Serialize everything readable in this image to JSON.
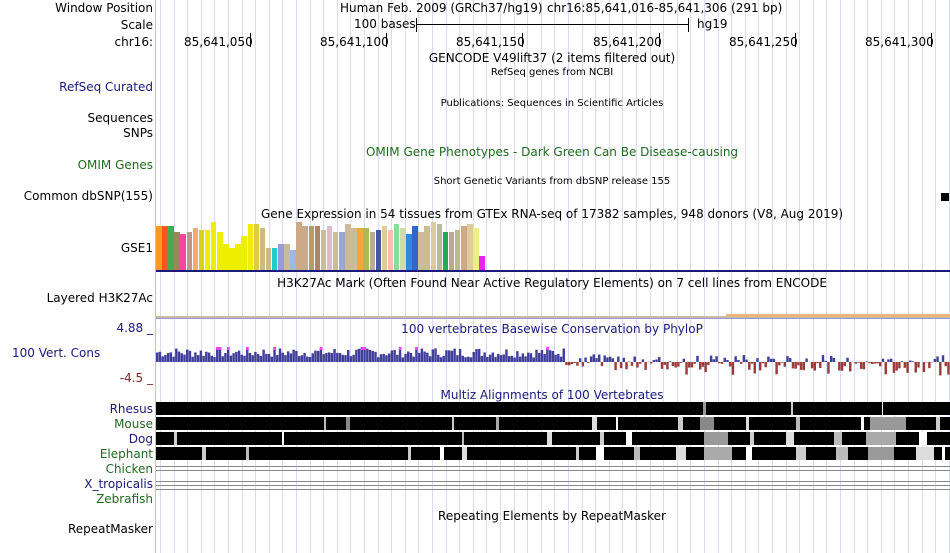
{
  "header": {
    "window_position_label": "Window Position",
    "scale_label": "Scale",
    "chrom_label": "chr16:",
    "assembly_text": "Human Feb. 2009 (GRCh37/hg19)",
    "position_text": "chr16:85,641,016-85,641,306 (291 bp)",
    "scale_text": "100 bases",
    "scale_db": "hg19",
    "ruler_ticks": [
      "85,641,050",
      "85,641,100",
      "85,641,150",
      "85,641,200",
      "85,641,250",
      "85,641,300"
    ]
  },
  "tracks": {
    "gencode": {
      "title": "GENCODE V49lift37 (2 items filtered out)"
    },
    "refseq": {
      "label": "RefSeq Curated",
      "title": "RefSeq genes from NCBI"
    },
    "sequences": {
      "label": "Sequences",
      "title": "Publications: Sequences in Scientific Articles"
    },
    "snps": {
      "label": "SNPs"
    },
    "omim": {
      "label": "OMIM Genes",
      "title": "OMIM Gene Phenotypes - Dark Green Can Be Disease-causing"
    },
    "dbsnp": {
      "title": "Short Genetic Variants from dbSNP release 155",
      "label": "Common dbSNP(155)"
    },
    "gtex": {
      "title": "Gene Expression in 54 tissues from GTEx RNA-seq of 17382 samples, 948 donors (V8, Aug 2019)",
      "label": "GSE1",
      "bar_values": [
        22,
        22,
        22,
        19,
        18,
        19,
        21,
        20,
        20,
        24,
        19,
        13,
        11,
        13,
        17,
        23,
        23,
        21,
        11,
        11,
        13,
        13,
        10,
        24,
        22,
        22,
        22,
        20,
        22,
        19,
        19,
        23,
        21,
        21,
        21,
        19,
        20,
        22,
        20,
        23,
        21,
        18,
        22,
        19,
        22,
        24,
        23,
        19,
        19,
        20,
        22,
        23,
        21,
        7
      ],
      "bar_colors": [
        "#ff9922",
        "#ff5522",
        "#44aa55",
        "#998855",
        "#ff4499",
        "#bb9988",
        "#ffaa66",
        "#ddcc22",
        "#eeee00",
        "#eeee00",
        "#eeee00",
        "#eeee00",
        "#eeee00",
        "#eeee00",
        "#eeee00",
        "#eeee00",
        "#ddcc44",
        "#ccbb88",
        "#ccbb88",
        "#22cccc",
        "#9999dd",
        "#ccbb99",
        "#99bbdd",
        "#ccaa88",
        "#ccaa88",
        "#bb9966",
        "#aa8866",
        "#ccbb99",
        "#ddbbcc",
        "#ccbb99",
        "#99aacc",
        "#ccbb99",
        "#ccbb99",
        "#eeaa33",
        "#aabb55",
        "#bbaa99",
        "#4455aa",
        "#ddcc99",
        "#ffbbbb",
        "#88dd99",
        "#ccddaa",
        "#3388dd",
        "#3366cc",
        "#ccbb99",
        "#ccbb99",
        "#ddcc99",
        "#bbbb99",
        "#22aa55",
        "#bbaa88",
        "#bbbb88",
        "#ccaa88",
        "#ddcc99",
        "#eeee88",
        "#ee22ee"
      ]
    },
    "h3k27ac": {
      "label": "Layered H3K27Ac",
      "title": "H3K27Ac Mark (Often Found Near Active Regulatory Elements) on 7 cell lines from ENCODE"
    },
    "phylop": {
      "label": "100 Vert. Cons",
      "max_label": "4.88 _",
      "min_label": "-4.5 _",
      "title": "100 vertebrates Basewise Conservation by PhyloP",
      "max": 4.88,
      "min": -4.5
    },
    "multiz": {
      "title": "Multiz Alignments of 100 Vertebrates",
      "species": [
        "Rhesus",
        "Mouse",
        "Dog",
        "Elephant",
        "Chicken",
        "X_tropicalis",
        "Zebrafish"
      ]
    },
    "repeatmasker": {
      "label": "RepeatMasker",
      "title": "Repeating Elements by RepeatMasker"
    }
  },
  "colors": {
    "label_blue": "#1a1a7a",
    "label_green": "#1f6b1f",
    "cons_positive": "#3f3f9a",
    "cons_negative": "#9b3a3a",
    "cons_clip": "#ee44ee",
    "highlight_line": "#1a1a7a"
  }
}
